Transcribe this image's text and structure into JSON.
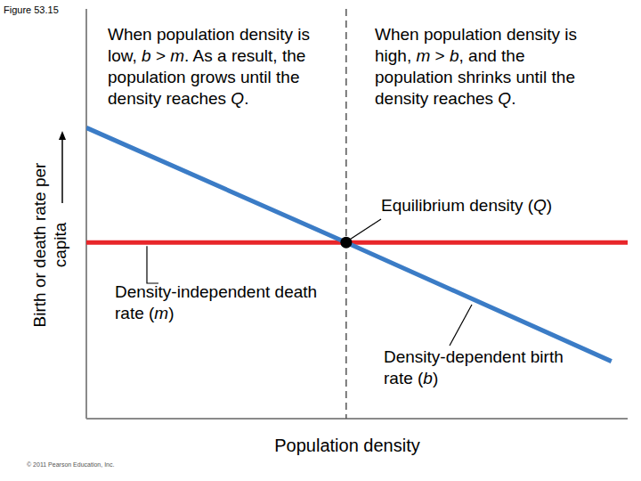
{
  "chart_data": {
    "type": "line",
    "title": "Figure 53.15",
    "x_label": "Population density",
    "y_label": "Birth or death rate per capita",
    "xlim": [
      0,
      100
    ],
    "ylim": [
      0,
      100
    ],
    "tick_labels": false,
    "grid": false,
    "x": [
      0,
      48,
      97,
      100
    ],
    "series": [
      {
        "name": "Density-dependent birth rate (b)",
        "color": "#3b7cc6",
        "values": [
          71,
          43,
          14,
          null
        ]
      },
      {
        "name": "Density-independent death rate (m)",
        "color": "#e8262a",
        "values": [
          43,
          43,
          43,
          43
        ]
      }
    ],
    "equilibrium": {
      "label": "Equilibrium density (Q)",
      "x": 48,
      "y": 43
    },
    "annotations": [
      "When population density is low, b > m. As a result, the population grows until the density reaches Q.",
      "When population density is high, m > b, and the population shrinks until the density reaches Q."
    ],
    "source": "© 2011 Pearson Education, Inc."
  }
}
